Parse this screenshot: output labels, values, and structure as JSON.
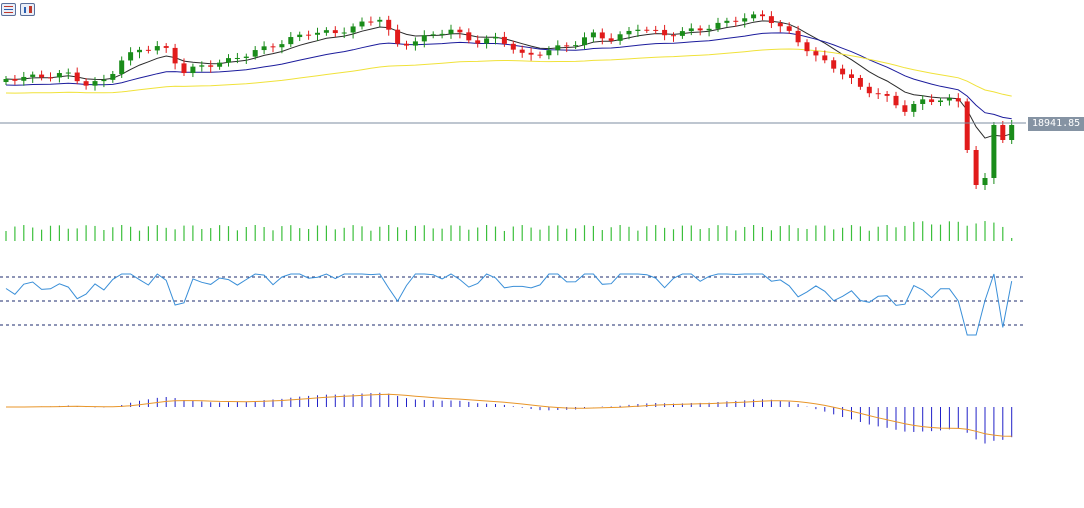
{
  "chart_data": {
    "type": "candlestick",
    "last_price_label": "18941.85",
    "last_price": 18941.85,
    "candle_count": 114,
    "colors": {
      "bull": "#1a8c1a",
      "bear": "#e11b1b",
      "ma_fast": "#2b2b2b",
      "ma_mid": "#1c1c9c",
      "ma_slow": "#f0e23a",
      "price_line": "#7d8da0",
      "volume": "#3cbf3c",
      "rsi": "#3a8fd8",
      "macd_hist": "#2020c8",
      "macd_signal": "#e8962a",
      "grid_dash": "#1c2b6e"
    },
    "indicators": {
      "moving_averages": [
        "fast",
        "mid",
        "slow"
      ],
      "volume": true,
      "rsi": {
        "levels": [
          "upper",
          "middle",
          "lower"
        ]
      },
      "macd": {
        "histogram": true,
        "signal_line": true
      }
    }
  },
  "toolbar": {
    "icons": [
      "list-icon",
      "chart-properties-icon"
    ]
  }
}
